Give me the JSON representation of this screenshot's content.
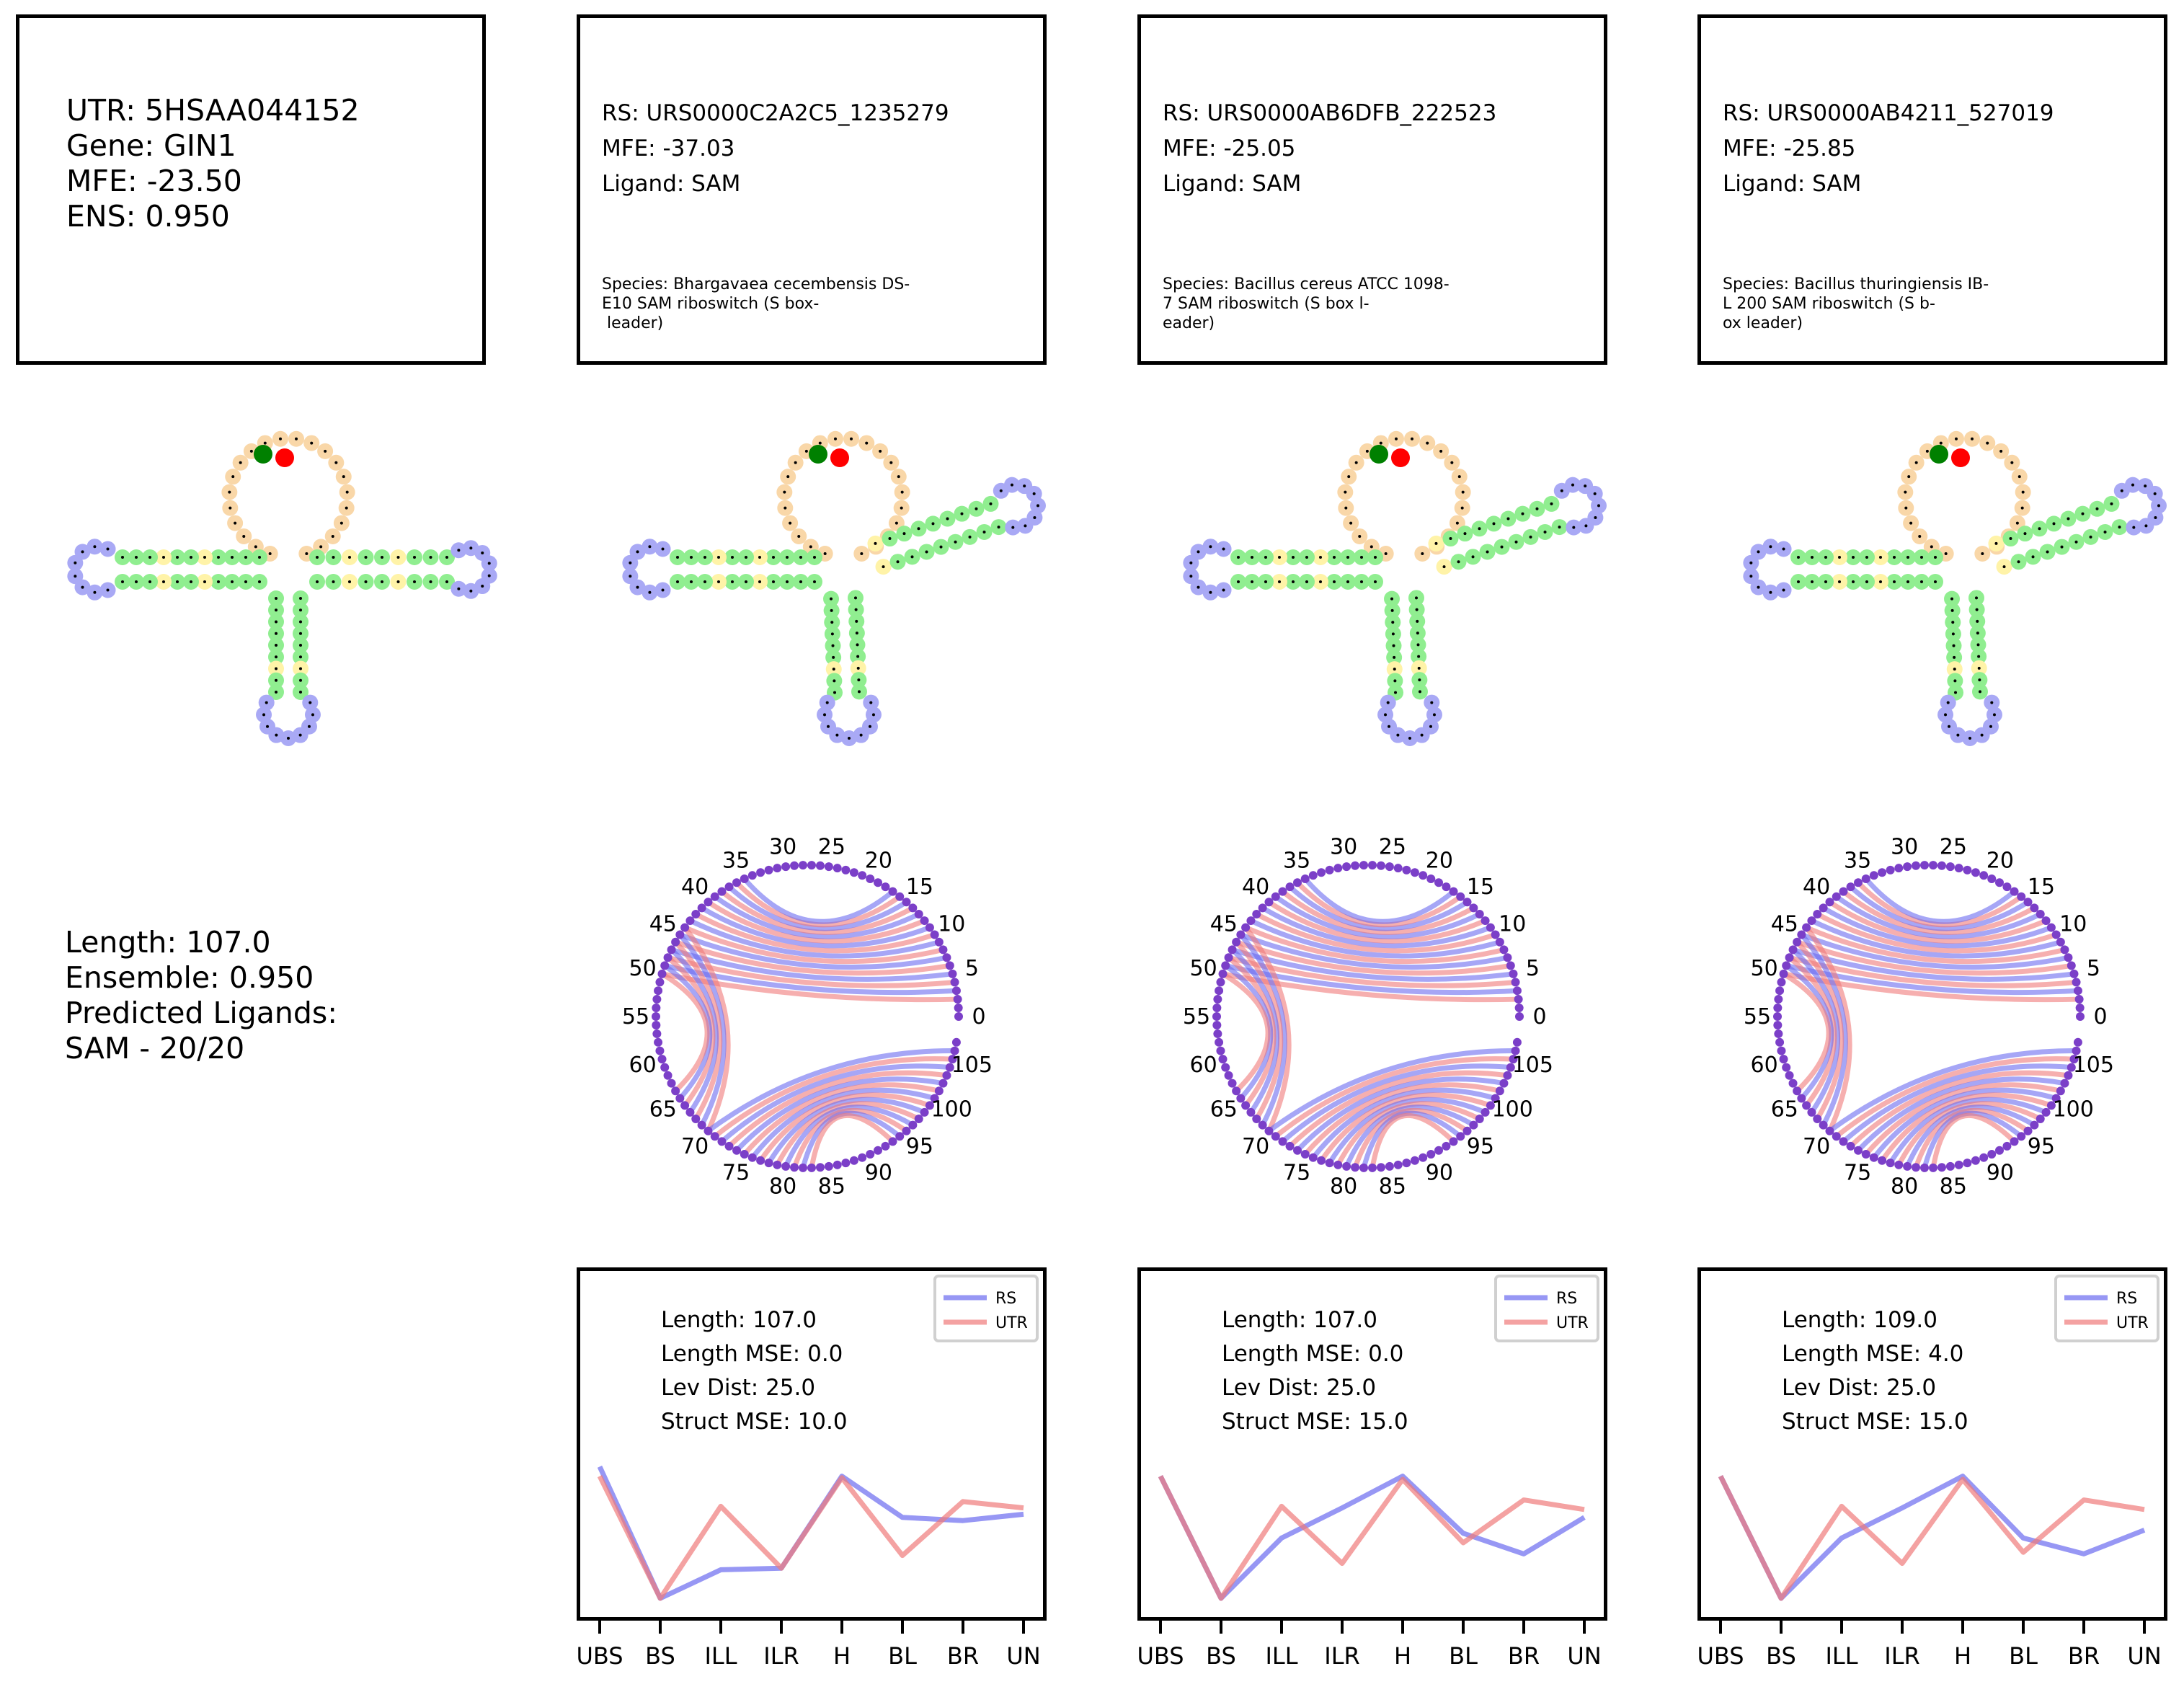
{
  "utr_info": {
    "utr": "UTR: 5HSAA044152",
    "gene": "Gene: GIN1",
    "mfe": "MFE: -23.50",
    "ens": "ENS: 0.950"
  },
  "utr_summary": {
    "length": "Length: 107.0",
    "ensemble": "Ensemble: 0.950",
    "predicted_ligands": "Predicted Ligands:",
    "ligand_count": "SAM - 20/20"
  },
  "riboswitches": [
    {
      "rs": "RS: URS0000C2A2C5_1235279",
      "mfe": "MFE: -37.03",
      "ligand": "Ligand: SAM",
      "species": [
        "Species: Bhargavaea cecembensis DS-",
        "E10 SAM riboswitch (S box-",
        " leader)"
      ],
      "stats": [
        "Length: 107.0",
        "Length MSE: 0.0",
        "Lev Dist: 25.0",
        "Struct MSE: 10.0"
      ]
    },
    {
      "rs": "RS: URS0000AB6DFB_222523",
      "mfe": "MFE: -25.05",
      "ligand": "Ligand: SAM",
      "species": [
        "Species: Bacillus cereus ATCC 1098-",
        "7 SAM riboswitch (S box l-",
        "eader)"
      ],
      "stats": [
        "Length: 107.0",
        "Length MSE: 0.0",
        "Lev Dist: 25.0",
        "Struct MSE: 15.0"
      ]
    },
    {
      "rs": "RS: URS0000AB4211_527019",
      "mfe": "MFE: -25.85",
      "ligand": "Ligand: SAM",
      "species": [
        "Species: Bacillus thuringiensis IB-",
        "L 200 SAM riboswitch (S b-",
        "ox leader)"
      ],
      "stats": [
        "Length: 109.0",
        "Length MSE: 4.0",
        "Lev Dist: 25.0",
        "Struct MSE: 15.0"
      ]
    }
  ],
  "colors": {
    "rs": "#6b6bf0",
    "utr": "#f07a7a",
    "stem": "#90ee90",
    "hairpin": "#a9a9f5",
    "interior": "#fff3a8",
    "multiloop": "#f9d7a8",
    "start": "#008000",
    "end": "#ff0000"
  },
  "chart_data": [
    {
      "type": "line",
      "categories": [
        "UBS",
        "BS",
        "ILL",
        "ILR",
        "H",
        "BL",
        "BR",
        "UN"
      ],
      "legend": "top-right",
      "series": [
        {
          "name": "RS",
          "values": [
            0.88,
            0.05,
            0.23,
            0.24,
            0.82,
            0.56,
            0.54,
            0.58
          ]
        },
        {
          "name": "UTR",
          "values": [
            0.82,
            0.05,
            0.63,
            0.24,
            0.81,
            0.32,
            0.66,
            0.62
          ]
        }
      ]
    },
    {
      "type": "line",
      "categories": [
        "UBS",
        "BS",
        "ILL",
        "ILR",
        "H",
        "BL",
        "BR",
        "UN"
      ],
      "legend": "top-right",
      "series": [
        {
          "name": "RS",
          "values": [
            0.82,
            0.05,
            0.43,
            0.62,
            0.82,
            0.46,
            0.33,
            0.56
          ]
        },
        {
          "name": "UTR",
          "values": [
            0.82,
            0.05,
            0.63,
            0.27,
            0.8,
            0.4,
            0.67,
            0.61
          ]
        }
      ]
    },
    {
      "type": "line",
      "categories": [
        "UBS",
        "BS",
        "ILL",
        "ILR",
        "H",
        "BL",
        "BR",
        "UN"
      ],
      "legend": "top-right",
      "series": [
        {
          "name": "RS",
          "values": [
            0.82,
            0.05,
            0.43,
            0.62,
            0.82,
            0.43,
            0.33,
            0.48
          ]
        },
        {
          "name": "UTR",
          "values": [
            0.82,
            0.05,
            0.63,
            0.27,
            0.8,
            0.34,
            0.67,
            0.61
          ]
        }
      ]
    }
  ],
  "arc_ticks": [
    "0",
    "5",
    "10",
    "15",
    "20",
    "25",
    "30",
    "35",
    "40",
    "45",
    "50",
    "55",
    "60",
    "65",
    "70",
    "75",
    "80",
    "85",
    "90",
    "95",
    "100",
    "105"
  ]
}
